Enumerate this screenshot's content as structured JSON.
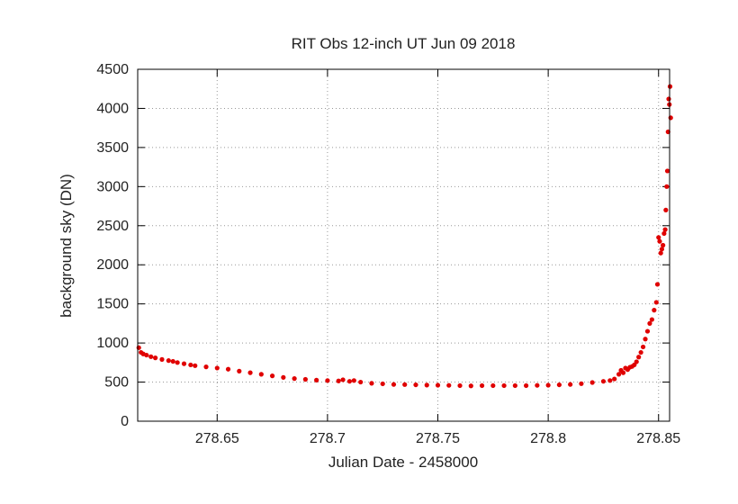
{
  "chart_data": {
    "type": "scatter",
    "title": "RIT Obs 12-inch UT Jun 09 2018",
    "xlabel": "Julian Date - 2458000",
    "ylabel": "background sky (DN)",
    "xlim": [
      278.614,
      278.855
    ],
    "ylim": [
      0,
      4500
    ],
    "x_ticks": [
      "278.65",
      "278.7",
      "278.75",
      "278.8",
      "278.85"
    ],
    "y_ticks": [
      "0",
      "500",
      "1000",
      "1500",
      "2000",
      "2500",
      "3000",
      "3500",
      "4000",
      "4500"
    ],
    "grid": true,
    "grid_style": "dotted",
    "marker_color": "#e00000",
    "series": [
      {
        "name": "",
        "points": [
          [
            278.6145,
            940
          ],
          [
            278.6155,
            880
          ],
          [
            278.6165,
            860
          ],
          [
            278.618,
            845
          ],
          [
            278.62,
            825
          ],
          [
            278.622,
            810
          ],
          [
            278.625,
            790
          ],
          [
            278.628,
            775
          ],
          [
            278.63,
            765
          ],
          [
            278.632,
            750
          ],
          [
            278.635,
            735
          ],
          [
            278.638,
            720
          ],
          [
            278.64,
            710
          ],
          [
            278.645,
            695
          ],
          [
            278.65,
            680
          ],
          [
            278.655,
            665
          ],
          [
            278.66,
            640
          ],
          [
            278.665,
            620
          ],
          [
            278.67,
            600
          ],
          [
            278.675,
            580
          ],
          [
            278.68,
            560
          ],
          [
            278.685,
            545
          ],
          [
            278.69,
            535
          ],
          [
            278.695,
            525
          ],
          [
            278.7,
            520
          ],
          [
            278.705,
            515
          ],
          [
            278.707,
            530
          ],
          [
            278.71,
            510
          ],
          [
            278.712,
            520
          ],
          [
            278.715,
            500
          ],
          [
            278.72,
            485
          ],
          [
            278.725,
            478
          ],
          [
            278.73,
            470
          ],
          [
            278.735,
            468
          ],
          [
            278.74,
            465
          ],
          [
            278.745,
            462
          ],
          [
            278.75,
            460
          ],
          [
            278.755,
            458
          ],
          [
            278.76,
            455
          ],
          [
            278.765,
            452
          ],
          [
            278.77,
            455
          ],
          [
            278.775,
            455
          ],
          [
            278.78,
            455
          ],
          [
            278.785,
            455
          ],
          [
            278.79,
            455
          ],
          [
            278.795,
            458
          ],
          [
            278.8,
            460
          ],
          [
            278.805,
            465
          ],
          [
            278.81,
            470
          ],
          [
            278.815,
            480
          ],
          [
            278.82,
            495
          ],
          [
            278.825,
            510
          ],
          [
            278.828,
            520
          ],
          [
            278.83,
            540
          ],
          [
            278.832,
            600
          ],
          [
            278.833,
            650
          ],
          [
            278.834,
            620
          ],
          [
            278.835,
            680
          ],
          [
            278.836,
            660
          ],
          [
            278.837,
            690
          ],
          [
            278.838,
            700
          ],
          [
            278.839,
            720
          ],
          [
            278.84,
            760
          ],
          [
            278.841,
            820
          ],
          [
            278.842,
            880
          ],
          [
            278.843,
            950
          ],
          [
            278.844,
            1050
          ],
          [
            278.845,
            1150
          ],
          [
            278.846,
            1250
          ],
          [
            278.847,
            1300
          ],
          [
            278.848,
            1420
          ],
          [
            278.849,
            1520
          ],
          [
            278.8495,
            1750
          ],
          [
            278.85,
            2350
          ],
          [
            278.8505,
            2300
          ],
          [
            278.851,
            2150
          ],
          [
            278.8515,
            2200
          ],
          [
            278.852,
            2250
          ],
          [
            278.8525,
            2400
          ],
          [
            278.853,
            2450
          ],
          [
            278.8533,
            2700
          ],
          [
            278.8537,
            3000
          ],
          [
            278.854,
            3200
          ],
          [
            278.8543,
            3700
          ],
          [
            278.8546,
            4120
          ],
          [
            278.8549,
            4050
          ],
          [
            278.8552,
            4280
          ],
          [
            278.8555,
            3880
          ]
        ]
      }
    ]
  }
}
